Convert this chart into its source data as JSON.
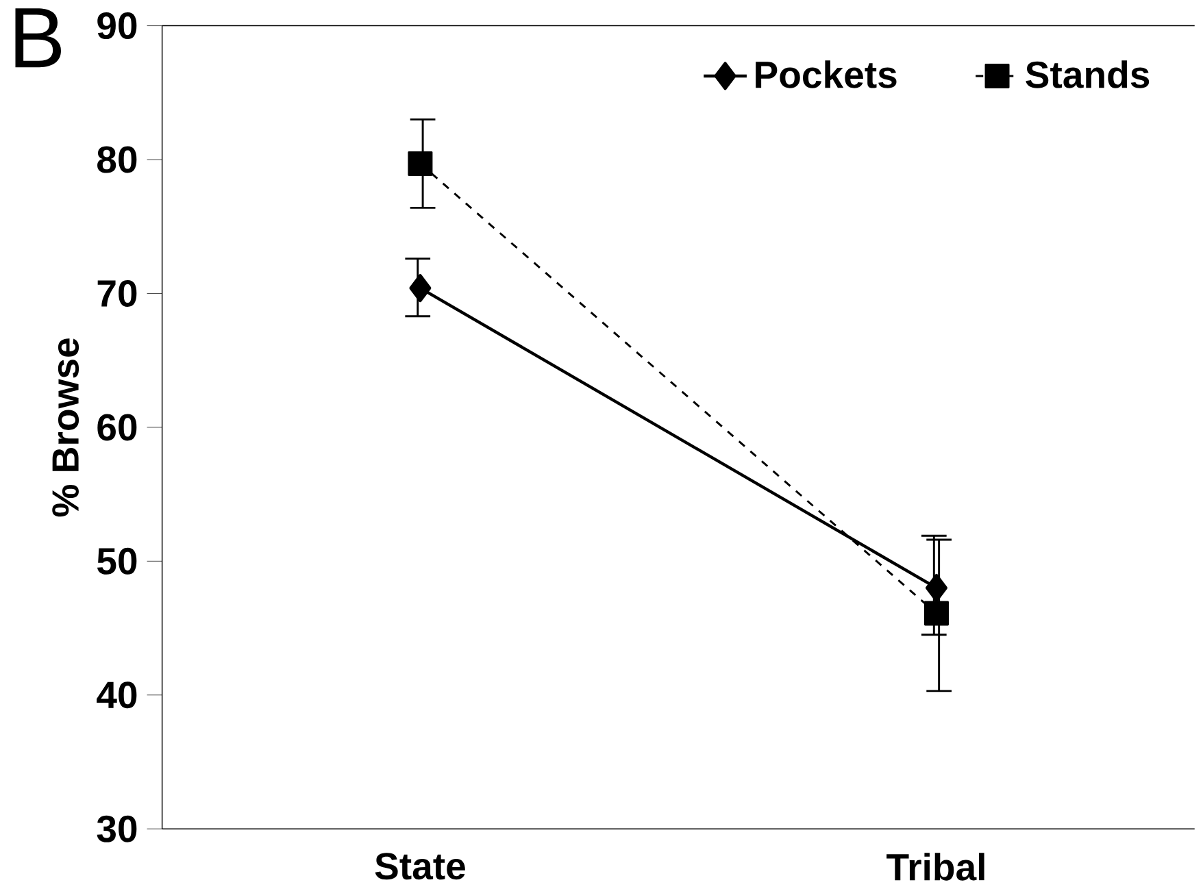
{
  "chart_data": {
    "type": "line",
    "ylabel": "% Browse",
    "annotations": [
      "B"
    ],
    "categories": [
      "State",
      "Tribal"
    ],
    "series": [
      {
        "name": "Pockets",
        "color": "#000000",
        "marker": "diamond",
        "line_style": "solid",
        "values": [
          70.4,
          48.0
        ],
        "errors": [
          [
            68.3,
            72.6
          ],
          [
            44.5,
            51.9
          ]
        ]
      },
      {
        "name": "Stands",
        "color": "#000000",
        "marker": "square",
        "line_style": "dashed",
        "values": [
          79.7,
          46.1
        ],
        "errors": [
          [
            76.4,
            83.0
          ],
          [
            40.3,
            51.6
          ]
        ]
      }
    ],
    "ylim": [
      30,
      90
    ],
    "yticks": [
      30,
      40,
      50,
      60,
      70,
      80,
      90
    ],
    "grid": false,
    "legend": "top right"
  }
}
